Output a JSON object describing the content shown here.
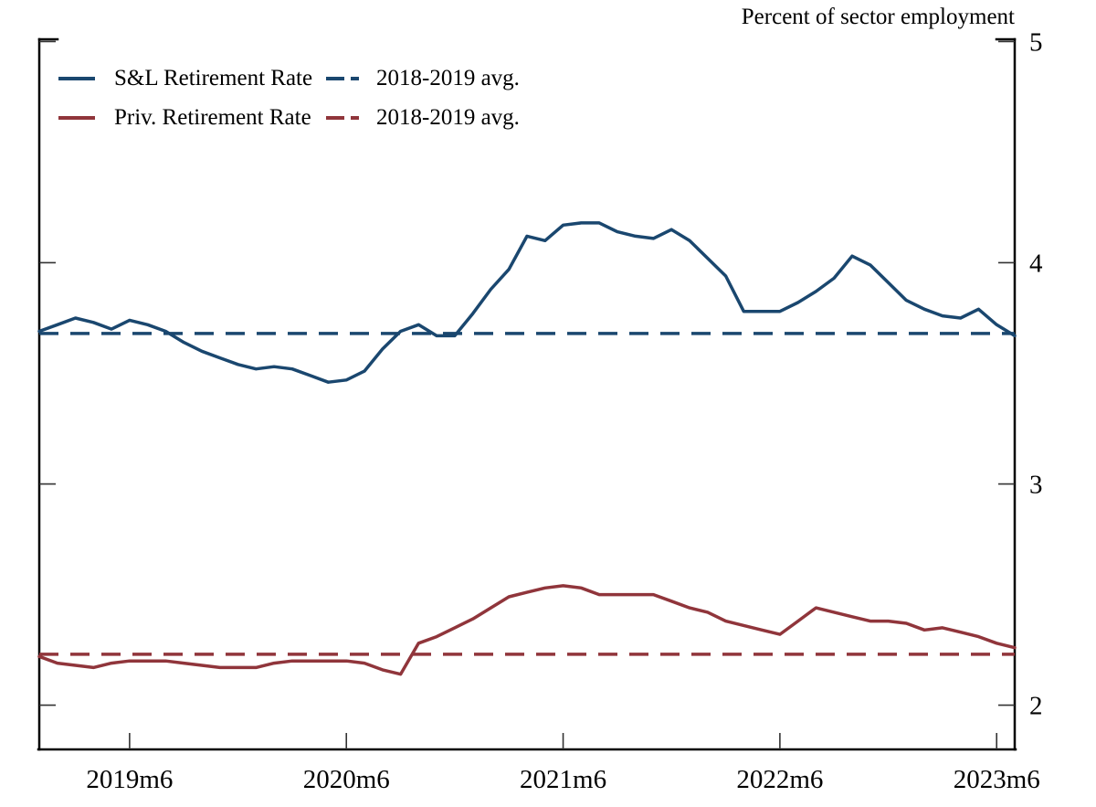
{
  "title": "Percent of sector employment",
  "legend": {
    "rows": [
      {
        "series_label": "S&L Retirement Rate",
        "avg_label": "2018-2019 avg.",
        "color": "#1a476f"
      },
      {
        "series_label": "Priv. Retirement Rate",
        "avg_label": "2018-2019 avg.",
        "color": "#90353b"
      }
    ]
  },
  "colors": {
    "sl_line": "#1a476f",
    "priv_line": "#90353b",
    "axis": "#000000",
    "tick": "#333333"
  },
  "chart_data": {
    "type": "line",
    "title": "Percent of sector employment",
    "xlabel": "",
    "ylabel": "Percent of sector employment",
    "y_axis_side": "right",
    "grid": false,
    "legend_position": "top-left-inside",
    "x_frequency": "monthly",
    "x_start": "2019m1",
    "x_end": "2023m7",
    "x_tick_labels": [
      "2019m6",
      "2020m6",
      "2021m6",
      "2022m6",
      "2023m6"
    ],
    "x_tick_month_indices": [
      5,
      17,
      29,
      41,
      53
    ],
    "y_ticks": [
      2,
      3,
      4,
      5
    ],
    "ylim": [
      1.8,
      5.01
    ],
    "series": [
      {
        "name": "S&L Retirement Rate",
        "style": "solid",
        "color": "#1a476f",
        "values": [
          3.69,
          3.72,
          3.75,
          3.73,
          3.7,
          3.74,
          3.72,
          3.69,
          3.64,
          3.6,
          3.57,
          3.54,
          3.52,
          3.53,
          3.52,
          3.49,
          3.46,
          3.47,
          3.51,
          3.61,
          3.69,
          3.72,
          3.67,
          3.67,
          3.77,
          3.88,
          3.97,
          4.12,
          4.1,
          4.17,
          4.18,
          4.18,
          4.14,
          4.12,
          4.11,
          4.15,
          4.1,
          4.02,
          3.94,
          3.78,
          3.78,
          3.78,
          3.82,
          3.87,
          3.93,
          4.03,
          3.99,
          3.91,
          3.83,
          3.79,
          3.76,
          3.75,
          3.79,
          3.72,
          3.67
        ]
      },
      {
        "name": "Priv. Retirement Rate",
        "style": "solid",
        "color": "#90353b",
        "values": [
          2.22,
          2.19,
          2.18,
          2.17,
          2.19,
          2.2,
          2.2,
          2.2,
          2.19,
          2.18,
          2.17,
          2.17,
          2.17,
          2.19,
          2.2,
          2.2,
          2.2,
          2.2,
          2.19,
          2.16,
          2.14,
          2.28,
          2.31,
          2.35,
          2.39,
          2.44,
          2.49,
          2.51,
          2.53,
          2.54,
          2.53,
          2.5,
          2.5,
          2.5,
          2.5,
          2.47,
          2.44,
          2.42,
          2.38,
          2.36,
          2.34,
          2.32,
          2.38,
          2.44,
          2.42,
          2.4,
          2.38,
          2.38,
          2.37,
          2.34,
          2.35,
          2.33,
          2.31,
          2.28,
          2.26
        ]
      }
    ],
    "reference_lines": [
      {
        "name": "S&L 2018-2019 avg.",
        "style": "dashed",
        "color": "#1a476f",
        "value": 3.68
      },
      {
        "name": "Priv. 2018-2019 avg.",
        "style": "dashed",
        "color": "#90353b",
        "value": 2.23
      }
    ]
  }
}
